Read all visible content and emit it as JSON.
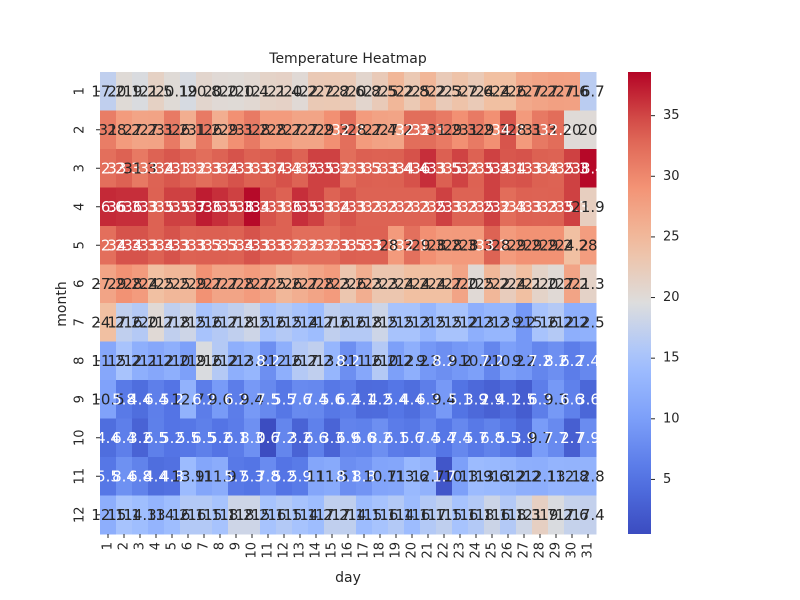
{
  "chart_data": {
    "type": "heatmap",
    "title": "Temperature Heatmap",
    "xlabel": "day",
    "ylabel": "month",
    "x_categories": [
      "1",
      "2",
      "3",
      "4",
      "5",
      "6",
      "7",
      "8",
      "9",
      "10",
      "11",
      "12",
      "13",
      "14",
      "15",
      "16",
      "17",
      "18",
      "19",
      "20",
      "21",
      "22",
      "23",
      "24",
      "25",
      "26",
      "27",
      "28",
      "29",
      "30",
      "31"
    ],
    "y_categories": [
      "1",
      "2",
      "3",
      "4",
      "5",
      "6",
      "7",
      "8",
      "9",
      "10",
      "11",
      "12"
    ],
    "colorbar": {
      "min": 0.5,
      "max": 38.6,
      "ticks": [
        5,
        10,
        15,
        20,
        25,
        30,
        35
      ],
      "colormap": "coolwarm"
    },
    "values": [
      [
        17.2,
        20.1,
        19.2,
        21.5,
        20.1,
        19.0,
        20.8,
        20.2,
        20.1,
        20.4,
        21.2,
        21.4,
        20.2,
        22.7,
        22.8,
        22.6,
        20.8,
        22.5,
        25.2,
        22.8,
        25.2,
        22.5,
        23.7,
        22.6,
        24.2,
        24.2,
        26.7,
        27.2,
        27.7,
        27.6,
        16.7
      ],
      [
        31.0,
        28.2,
        27.2,
        27.3,
        31.2,
        26.1,
        31.2,
        26.2,
        29.3,
        31.2,
        28.2,
        28.2,
        27.2,
        27.2,
        29.3,
        32.2,
        28.2,
        27.4,
        27.2,
        32.3,
        32.3,
        31.2,
        29.3,
        31.2,
        29.3,
        34.2,
        28.3,
        31.3,
        32.4,
        20.0,
        20.0
      ],
      [
        32.2,
        33.3,
        31.3,
        33.2,
        34.1,
        33.3,
        32.3,
        33.2,
        34.3,
        33.3,
        33.7,
        34.4,
        33.2,
        35.3,
        35.3,
        32.3,
        33.5,
        33.3,
        33.4,
        34.4,
        36.3,
        33.5,
        35.2,
        33.3,
        35.3,
        34.1,
        34.3,
        33.4,
        33.2,
        35.3,
        38.4
      ],
      [
        36.6,
        36.3,
        36.3,
        33.3,
        35.3,
        35.3,
        37.3,
        36.3,
        35.3,
        38.3,
        34.3,
        33.3,
        36.3,
        35.3,
        33.2,
        34.3,
        33.2,
        33.2,
        33.2,
        33.2,
        33.2,
        35.3,
        33.2,
        33.2,
        35.3,
        32.4,
        33.3,
        33.2,
        33.3,
        35.3,
        21.9
      ],
      [
        32.2,
        34.3,
        34.3,
        33.3,
        34.3,
        33.3,
        33.5,
        33.5,
        33.3,
        34.3,
        33.3,
        33.3,
        32.3,
        32.3,
        32.3,
        33.5,
        33.3,
        33.3,
        28.3,
        32.1,
        29.3,
        28.2,
        28.3,
        28.3,
        33.2,
        28.2,
        29.2,
        29.2,
        29.2,
        24.2,
        28.0
      ],
      [
        27.2,
        29.2,
        28.2,
        24.2,
        25.2,
        25.2,
        29.2,
        27.2,
        27.2,
        28.2,
        27.2,
        25.2,
        26.2,
        27.2,
        28.2,
        23.2,
        26.2,
        23.2,
        23.2,
        24.2,
        24.2,
        24.2,
        27.2,
        20.2,
        25.2,
        22.2,
        24.2,
        21.2,
        20.2,
        27.2,
        21.3
      ],
      [
        24.2,
        17.2,
        16.2,
        20.2,
        17.2,
        18.2,
        15.2,
        16.2,
        17.2,
        18.2,
        15.2,
        16.2,
        15.2,
        14.2,
        17.2,
        16.2,
        16.2,
        18.2,
        15.2,
        15.2,
        13.2,
        15.2,
        15.2,
        12.2,
        13.2,
        13.2,
        9.2,
        15.2,
        16.2,
        12.2,
        12.5
      ],
      [
        11.2,
        15.2,
        12.2,
        11.2,
        12.2,
        10.2,
        19.2,
        16.2,
        12.2,
        13.2,
        8.2,
        12.2,
        16.2,
        17.2,
        13.2,
        8.2,
        11.2,
        16.2,
        10.2,
        12.2,
        9.2,
        8.2,
        9.2,
        10.2,
        7.2,
        10.2,
        9.2,
        7.2,
        8.2,
        6.2,
        7.4
      ],
      [
        10.5,
        5.8,
        4.4,
        6.4,
        5.2,
        12.7,
        6.2,
        9.6,
        6.2,
        9.4,
        7.5,
        5.5,
        7.6,
        7.4,
        5.6,
        6.2,
        4.1,
        4.2,
        5.4,
        4.4,
        6.3,
        9.4,
        5.1,
        3.9,
        2.9,
        4.1,
        2.5,
        6.3,
        9.3,
        6.6,
        3.6
      ],
      [
        4.4,
        6.4,
        3.2,
        6.5,
        5.2,
        5.5,
        6.5,
        5.2,
        6.1,
        8.3,
        0.6,
        7.2,
        3.2,
        6.6,
        3.3,
        6.9,
        6.6,
        8.2,
        6.1,
        5.6,
        7.4,
        5.4,
        7.4,
        5.7,
        6.8,
        5.5,
        3.9,
        9.7,
        7.7,
        2.7,
        7.9
      ],
      [
        5.5,
        8.4,
        6.8,
        4.4,
        4.8,
        13.9,
        11.0,
        11.9,
        5.7,
        5.3,
        7.8,
        5.2,
        5.9,
        11.0,
        11.5,
        8.1,
        8.8,
        10.7,
        11.0,
        13.6,
        12.7,
        1.7,
        10.1,
        13.9,
        13.6,
        13.2,
        12.2,
        12.1,
        13.0,
        12.8,
        12.8
      ],
      [
        12.1,
        15.1,
        14.3,
        13.0,
        14.2,
        16.1,
        16.1,
        15.1,
        18.2,
        18.2,
        15.1,
        16.1,
        15.1,
        14.2,
        17.2,
        17.1,
        14.1,
        15.1,
        16.1,
        14.1,
        16.1,
        17.1,
        15.1,
        16.1,
        18.1,
        16.1,
        18.3,
        21.7,
        19.2,
        17.6,
        17.4
      ]
    ]
  }
}
